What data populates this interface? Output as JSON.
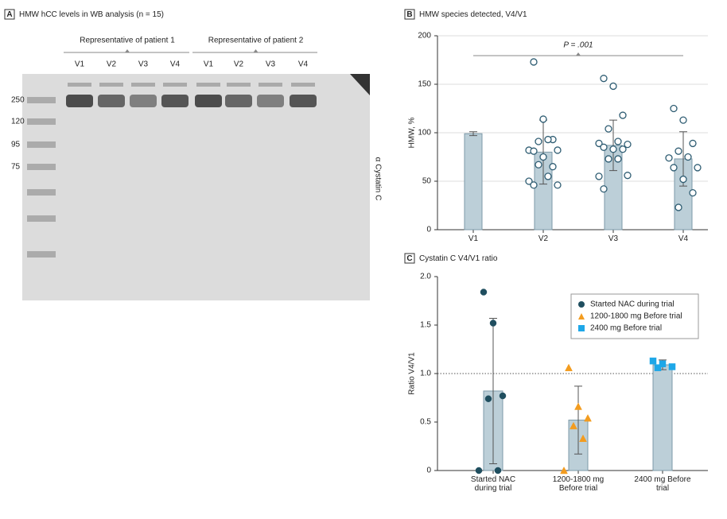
{
  "panel_a": {
    "label": "A",
    "title": "HMW hCC levels in WB analysis (n = 15)",
    "groups": [
      {
        "name": "Representative of patient 1",
        "lanes": [
          "V1",
          "V2",
          "V3",
          "V4"
        ]
      },
      {
        "name": "Representative of patient 2",
        "lanes": [
          "V1",
          "V2",
          "V3",
          "V4"
        ]
      }
    ],
    "markers": [
      "250",
      "120",
      "95",
      "75"
    ],
    "antibody": "α Cystatin C"
  },
  "chart_data": [
    {
      "type": "bar",
      "label": "B",
      "title": "HMW species detected, V4/V1",
      "ylabel": "HMW, %",
      "categories": [
        "V1",
        "V2",
        "V3",
        "V4"
      ],
      "values": [
        99,
        80,
        87,
        73
      ],
      "errors": [
        2,
        33,
        26,
        28
      ],
      "points": [
        [],
        [
          173,
          114,
          93,
          91,
          93,
          82,
          82,
          81,
          75,
          65,
          67,
          55,
          50,
          46,
          46
        ],
        [
          156,
          148,
          118,
          104,
          91,
          89,
          88,
          85,
          83,
          83,
          73,
          73,
          55,
          56,
          42
        ],
        [
          125,
          113,
          89,
          81,
          75,
          74,
          64,
          64,
          52,
          38,
          23
        ]
      ],
      "color": "#bccfd8",
      "point_color": "#2f5d73",
      "ylim": [
        0,
        200
      ],
      "yticks": [
        0,
        50,
        100,
        150,
        200
      ],
      "grid": true,
      "annotation": "P = .001"
    },
    {
      "type": "bar",
      "label": "C",
      "title": "Cystatin C V4/V1 ratio",
      "ylabel": "Ratio V4/V1",
      "categories": [
        "Started NAC during trial",
        "1200-1800 mg Before trial",
        "2400 mg Before trial"
      ],
      "values": [
        0.82,
        0.52,
        1.09
      ],
      "errors": [
        0.75,
        0.35,
        0.05
      ],
      "points": [
        [
          1.84,
          1.52,
          0.77,
          0.74,
          0,
          0
        ],
        [
          1.06,
          0.66,
          0.54,
          0.46,
          0.33,
          0
        ],
        [
          1.13,
          1.1,
          1.07,
          1.06
        ]
      ],
      "legend": [
        {
          "name": "Started NAC during trial",
          "color": "#1f4e5f",
          "marker": "circle"
        },
        {
          "name": "1200-1800 mg Before trial",
          "color": "#f39c1f",
          "marker": "triangle"
        },
        {
          "name": "2400 mg Before trial",
          "color": "#1ea7e8",
          "marker": "square"
        }
      ],
      "color": "#bccfd8",
      "reference_line": 1,
      "ylim": [
        0,
        2
      ],
      "yticks": [
        0,
        0.5,
        {
          "value": 1,
          "label": "1.0"
        },
        1.5,
        {
          "value": 2,
          "label": "2.0"
        }
      ],
      "grid": false
    }
  ]
}
